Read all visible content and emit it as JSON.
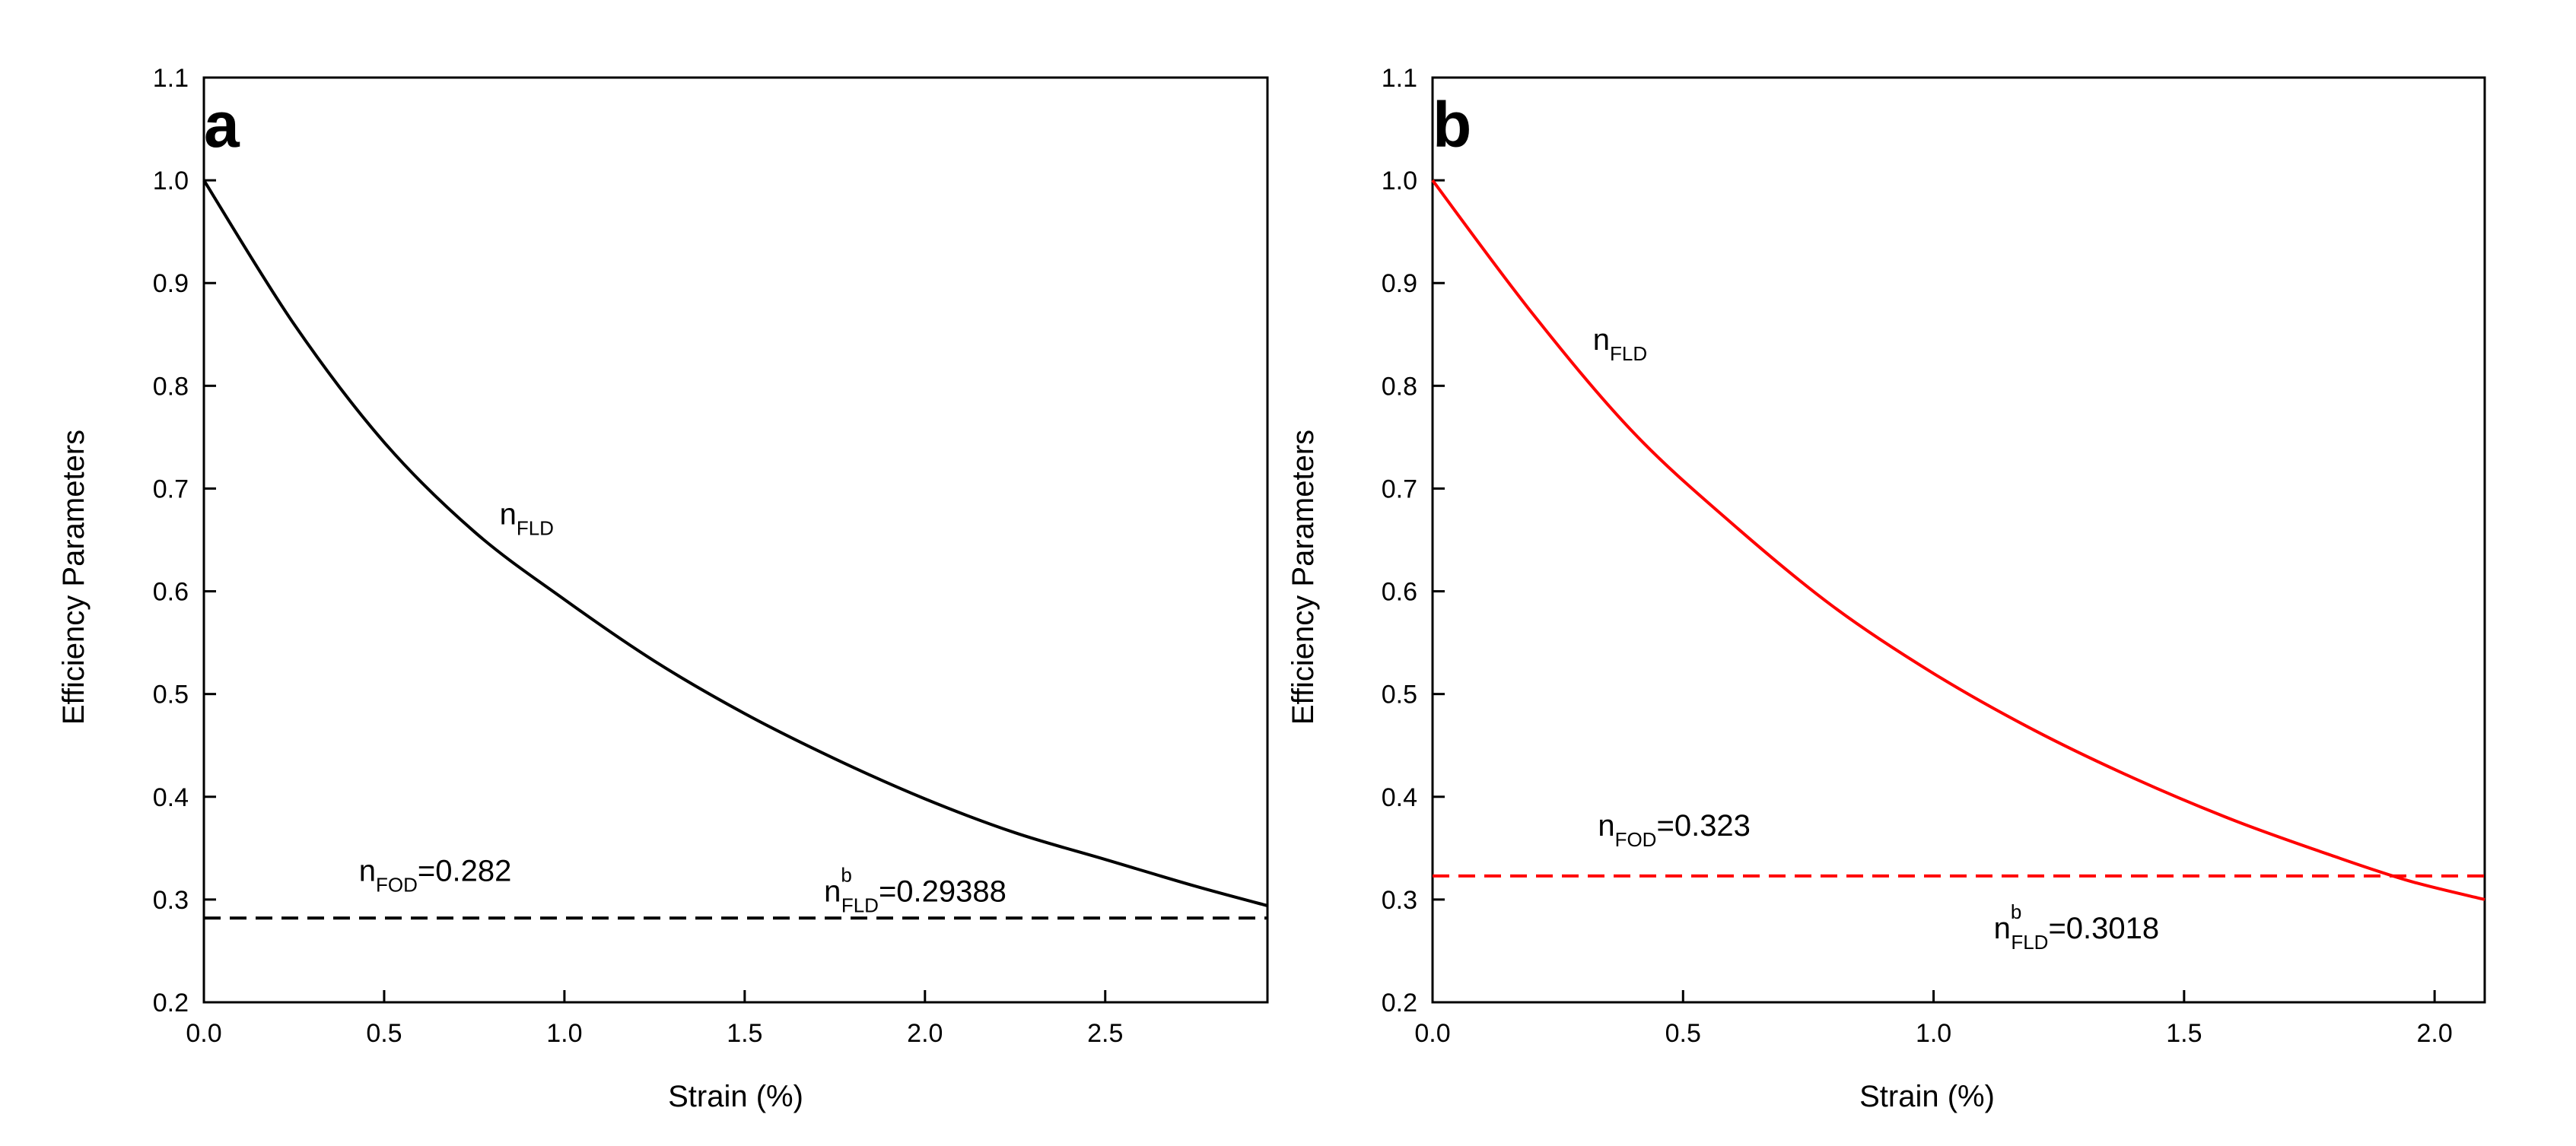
{
  "chart_data": [
    {
      "panel": "a",
      "type": "line",
      "xlabel": "Strain (%)",
      "ylabel": "Efficiency Parameters",
      "xlim": [
        0,
        2.95
      ],
      "ylim": [
        0.2,
        1.1
      ],
      "xticks": [
        0.0,
        0.5,
        1.0,
        1.5,
        2.0,
        2.5
      ],
      "xtick_labels": [
        "0.0",
        "0.5",
        "1.0",
        "1.5",
        "2.0",
        "2.5"
      ],
      "yticks": [
        0.2,
        0.3,
        0.4,
        0.5,
        0.6,
        0.7,
        0.8,
        0.9,
        1.0,
        1.1
      ],
      "ytick_labels": [
        "0.2",
        "0.3",
        "0.4",
        "0.5",
        "0.6",
        "0.7",
        "0.8",
        "0.9",
        "1.0",
        "1.1"
      ],
      "series": [
        {
          "name": "n_FLD",
          "style": "solid",
          "color": "#000000",
          "x": [
            0.0,
            0.25,
            0.5,
            0.75,
            1.0,
            1.25,
            1.5,
            1.75,
            2.0,
            2.25,
            2.5,
            2.75,
            2.95
          ],
          "y": [
            1.0,
            0.86,
            0.745,
            0.658,
            0.592,
            0.532,
            0.481,
            0.437,
            0.398,
            0.365,
            0.339,
            0.313,
            0.294
          ]
        },
        {
          "name": "n_FOD",
          "style": "dashed",
          "color": "#000000",
          "x": [
            0.0,
            2.95
          ],
          "y": [
            0.282,
            0.282
          ]
        }
      ],
      "annotations": [
        {
          "main": "n",
          "sub": "FLD",
          "sup": "",
          "tail": "",
          "x": 0.82,
          "y": 0.665
        },
        {
          "main": "n",
          "sub": "FOD",
          "sup": "",
          "tail": "=0.282",
          "x": 0.43,
          "y": 0.318
        },
        {
          "main": "n",
          "sub": "FLD",
          "sup": "b",
          "tail": "=0.29388",
          "x": 1.72,
          "y": 0.298
        }
      ]
    },
    {
      "panel": "b",
      "type": "line",
      "xlabel": "Strain (%)",
      "ylabel": "Efficiency Parameters",
      "xlim": [
        0,
        2.1
      ],
      "ylim": [
        0.2,
        1.1
      ],
      "xticks": [
        0.0,
        0.5,
        1.0,
        1.5,
        2.0
      ],
      "xtick_labels": [
        "0.0",
        "0.5",
        "1.0",
        "1.5",
        "2.0"
      ],
      "yticks": [
        0.2,
        0.3,
        0.4,
        0.5,
        0.6,
        0.7,
        0.8,
        0.9,
        1.0,
        1.1
      ],
      "ytick_labels": [
        "0.2",
        "0.3",
        "0.4",
        "0.5",
        "0.6",
        "0.7",
        "0.8",
        "0.9",
        "1.0",
        "1.1"
      ],
      "series": [
        {
          "name": "n_FLD",
          "style": "solid",
          "color": "#ff0000",
          "x": [
            0.0,
            0.2,
            0.4,
            0.6,
            0.8,
            1.0,
            1.2,
            1.4,
            1.6,
            1.8,
            1.95,
            2.1
          ],
          "y": [
            1.0,
            0.87,
            0.755,
            0.665,
            0.585,
            0.52,
            0.465,
            0.418,
            0.377,
            0.342,
            0.318,
            0.3
          ]
        },
        {
          "name": "n_FOD",
          "style": "dashed",
          "color": "#ff0000",
          "x": [
            0.0,
            2.1
          ],
          "y": [
            0.323,
            0.323
          ]
        }
      ],
      "annotations": [
        {
          "main": "n",
          "sub": "FLD",
          "sup": "",
          "tail": "",
          "x": 0.32,
          "y": 0.835
        },
        {
          "main": "n",
          "sub": "FOD",
          "sup": "",
          "tail": "=0.323",
          "x": 0.33,
          "y": 0.362
        },
        {
          "main": "n",
          "sub": "FLD",
          "sup": "b",
          "tail": "=0.3018",
          "x": 1.12,
          "y": 0.262
        }
      ]
    }
  ]
}
